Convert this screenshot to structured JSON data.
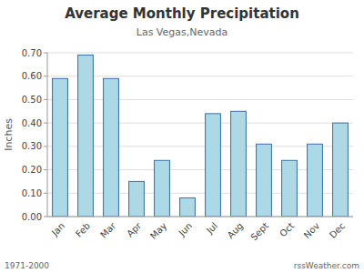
{
  "chart_data": {
    "type": "bar",
    "title": "Average Monthly Precipitation",
    "subtitle": "Las Vegas,Nevada",
    "ylabel": "Inches",
    "categories": [
      "Jan",
      "Feb",
      "Mar",
      "Apr",
      "May",
      "Jun",
      "Jul",
      "Aug",
      "Sept",
      "Oct",
      "Nov",
      "Dec"
    ],
    "values": [
      0.59,
      0.69,
      0.59,
      0.15,
      0.24,
      0.08,
      0.44,
      0.45,
      0.31,
      0.24,
      0.31,
      0.4
    ],
    "color": "#ADD8E6",
    "ylim": [
      0,
      0.7
    ],
    "yticks": [
      {
        "value": 0.0,
        "label": "0.00"
      },
      {
        "value": 0.1,
        "label": "0.10"
      },
      {
        "value": 0.2,
        "label": "0.20"
      },
      {
        "value": 0.3,
        "label": "0.30"
      },
      {
        "value": 0.4,
        "label": "0.40"
      },
      {
        "value": 0.5,
        "label": "0.50"
      },
      {
        "value": 0.6,
        "label": "0.60"
      },
      {
        "value": 0.7,
        "label": "0.70"
      }
    ],
    "grid": true,
    "annotations": [
      "1971-2000",
      "rssWeather.com"
    ]
  }
}
